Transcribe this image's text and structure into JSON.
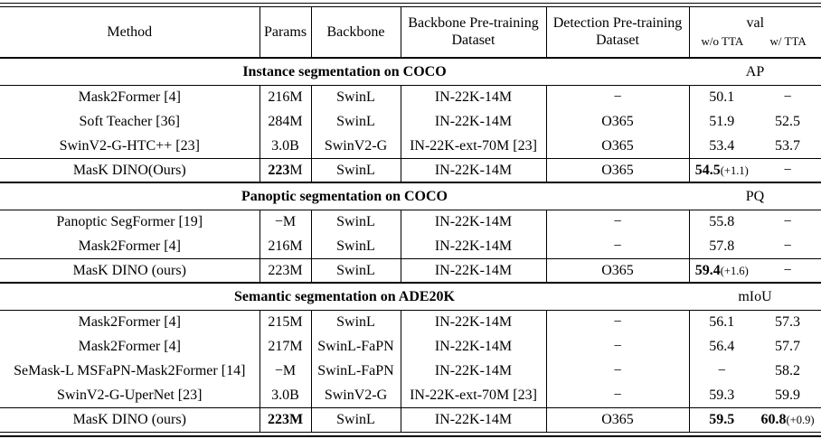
{
  "table": {
    "header": {
      "method": "Method",
      "params": "Params",
      "backbone": "Backbone",
      "backbone_pretraining": "Backbone Pre-training Dataset",
      "detection_pretraining": "Detection Pre-training Dataset",
      "val": "val",
      "wo_tta": "w/o TTA",
      "w_tta": "w/ TTA"
    },
    "sections": [
      {
        "title": "Instance segmentation on COCO",
        "metric": "AP",
        "rows": [
          {
            "method": "Mask2Former [4]",
            "params": "216M",
            "backbone": "SwinL",
            "backbone_pretraining": "IN-22K-14M",
            "detection_pretraining": "−",
            "wo": "50.1",
            "wt": "−"
          },
          {
            "method": "Soft Teacher [36]",
            "params": "284M",
            "backbone": "SwinL",
            "backbone_pretraining": "IN-22K-14M",
            "detection_pretraining": "O365",
            "wo": "51.9",
            "wt": "52.5"
          },
          {
            "method": "SwinV2-G-HTC++ [23]",
            "params": "3.0B",
            "backbone": "SwinV2-G",
            "backbone_pretraining": "IN-22K-ext-70M [23]",
            "detection_pretraining": "O365",
            "wo": "53.4",
            "wt": "53.7"
          },
          {
            "method": "MasK DINO(Ours)",
            "params_bold": "223",
            "params": "M",
            "backbone": "SwinL",
            "backbone_pretraining": "IN-22K-14M",
            "detection_pretraining": "O365",
            "wo": "54.5",
            "wo_note": "(+1.1)",
            "wt": "−"
          }
        ]
      },
      {
        "title": "Panoptic segmentation on COCO",
        "metric": "PQ",
        "rows": [
          {
            "method": "Panoptic SegFormer [19]",
            "params": "−M",
            "backbone": "SwinL",
            "backbone_pretraining": "IN-22K-14M",
            "detection_pretraining": "−",
            "wo": "55.8",
            "wt": "−"
          },
          {
            "method": "Mask2Former [4]",
            "params": "216M",
            "backbone": "SwinL",
            "backbone_pretraining": "IN-22K-14M",
            "detection_pretraining": "−",
            "wo": "57.8",
            "wt": "−"
          },
          {
            "method": "MasK DINO (ours)",
            "params": "223M",
            "backbone": "SwinL",
            "backbone_pretraining": "IN-22K-14M",
            "detection_pretraining": "O365",
            "wo": "59.4",
            "wo_note": "(+1.6)",
            "wt": "−"
          }
        ]
      },
      {
        "title": "Semantic segmentation on ADE20K",
        "metric": "mIoU",
        "rows": [
          {
            "method": "Mask2Former [4]",
            "params": "215M",
            "backbone": "SwinL",
            "backbone_pretraining": "IN-22K-14M",
            "detection_pretraining": "−",
            "wo": "56.1",
            "wt": "57.3"
          },
          {
            "method": "Mask2Former [4]",
            "params": "217M",
            "backbone": "SwinL-FaPN",
            "backbone_pretraining": "IN-22K-14M",
            "detection_pretraining": "−",
            "wo": "56.4",
            "wt": "57.7"
          },
          {
            "method": "SeMask-L MSFaPN-Mask2Former [14]",
            "params": "−M",
            "backbone": "SwinL-FaPN",
            "backbone_pretraining": "IN-22K-14M",
            "detection_pretraining": "−",
            "wo": "−",
            "wt": "58.2"
          },
          {
            "method": "SwinV2-G-UperNet [23]",
            "params": "3.0B",
            "backbone": "SwinV2-G",
            "backbone_pretraining": "IN-22K-ext-70M [23]",
            "detection_pretraining": "−",
            "wo": "59.3",
            "wt": "59.9"
          },
          {
            "method": "MasK DINO (ours)",
            "params_bold": "223M",
            "backbone": "SwinL",
            "backbone_pretraining": "IN-22K-14M",
            "detection_pretraining": "O365",
            "wo": "59.5",
            "wt": "60.8",
            "wt_note": "(+0.9)"
          }
        ]
      }
    ]
  }
}
